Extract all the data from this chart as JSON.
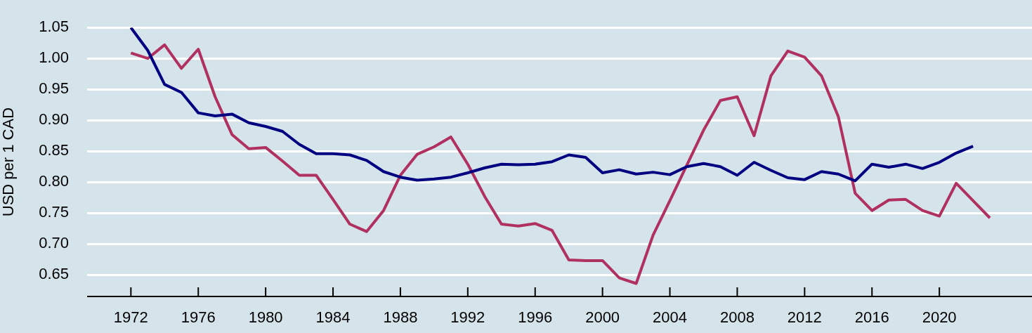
{
  "chart_data": {
    "type": "line",
    "ylabel": "USD per 1 CAD",
    "x": [
      1972,
      1973,
      1974,
      1975,
      1976,
      1977,
      1978,
      1979,
      1980,
      1981,
      1982,
      1983,
      1984,
      1985,
      1986,
      1987,
      1988,
      1989,
      1990,
      1991,
      1992,
      1993,
      1994,
      1995,
      1996,
      1997,
      1998,
      1999,
      2000,
      2001,
      2002,
      2003,
      2004,
      2005,
      2006,
      2007,
      2008,
      2009,
      2010,
      2011,
      2012,
      2013,
      2014,
      2015,
      2016,
      2017,
      2018,
      2019,
      2020,
      2021,
      2022,
      2023
    ],
    "series": [
      {
        "color": "#000080",
        "values": [
          1.05,
          1.013,
          0.958,
          0.945,
          0.912,
          0.907,
          0.91,
          0.896,
          0.89,
          0.882,
          0.861,
          0.846,
          0.846,
          0.844,
          0.835,
          0.817,
          0.808,
          0.803,
          0.805,
          0.808,
          0.815,
          0.823,
          0.829,
          0.828,
          0.829,
          0.833,
          0.844,
          0.84,
          0.815,
          0.82,
          0.813,
          0.816,
          0.812,
          0.825,
          0.83,
          0.825,
          0.811,
          0.832,
          0.819,
          0.807,
          0.804,
          0.817,
          0.813,
          0.802,
          0.829,
          0.824,
          0.829,
          0.822,
          0.832,
          0.847,
          0.858,
          null
        ]
      },
      {
        "color": "#b03060",
        "values": [
          1.009,
          1.0,
          1.022,
          0.984,
          1.015,
          0.938,
          0.877,
          0.854,
          0.856,
          0.834,
          0.811,
          0.811,
          0.772,
          0.732,
          0.72,
          0.754,
          0.811,
          0.845,
          0.857,
          0.873,
          0.829,
          0.777,
          0.732,
          0.729,
          0.733,
          0.722,
          0.674,
          0.673,
          0.673,
          0.645,
          0.636,
          0.714,
          0.77,
          0.827,
          0.884,
          0.932,
          0.938,
          0.875,
          0.972,
          1.012,
          1.002,
          0.972,
          0.906,
          0.782,
          0.754,
          0.771,
          0.772,
          0.754,
          0.745,
          0.798,
          0.77,
          0.742
        ]
      }
    ],
    "xlim": [
      1969.4,
      2025.5
    ],
    "xticks": [
      1972,
      1976,
      1980,
      1984,
      1988,
      1992,
      1996,
      2000,
      2004,
      2008,
      2012,
      2016,
      2020
    ],
    "ylim": [
      0.615,
      1.05
    ],
    "yticks": [
      {
        "value": 0.65,
        "label": "0.65"
      },
      {
        "value": 0.7,
        "label": "0.70"
      },
      {
        "value": 0.75,
        "label": "0.75"
      },
      {
        "value": 0.8,
        "label": "0.80"
      },
      {
        "value": 0.85,
        "label": "0.85"
      },
      {
        "value": 0.9,
        "label": "0.90"
      },
      {
        "value": 0.95,
        "label": "0.95"
      },
      {
        "value": 1.0,
        "label": "1.00"
      },
      {
        "value": 1.05,
        "label": "1.05"
      }
    ],
    "grid": "y",
    "legend": false,
    "marker": "none",
    "line_style": "solid"
  }
}
